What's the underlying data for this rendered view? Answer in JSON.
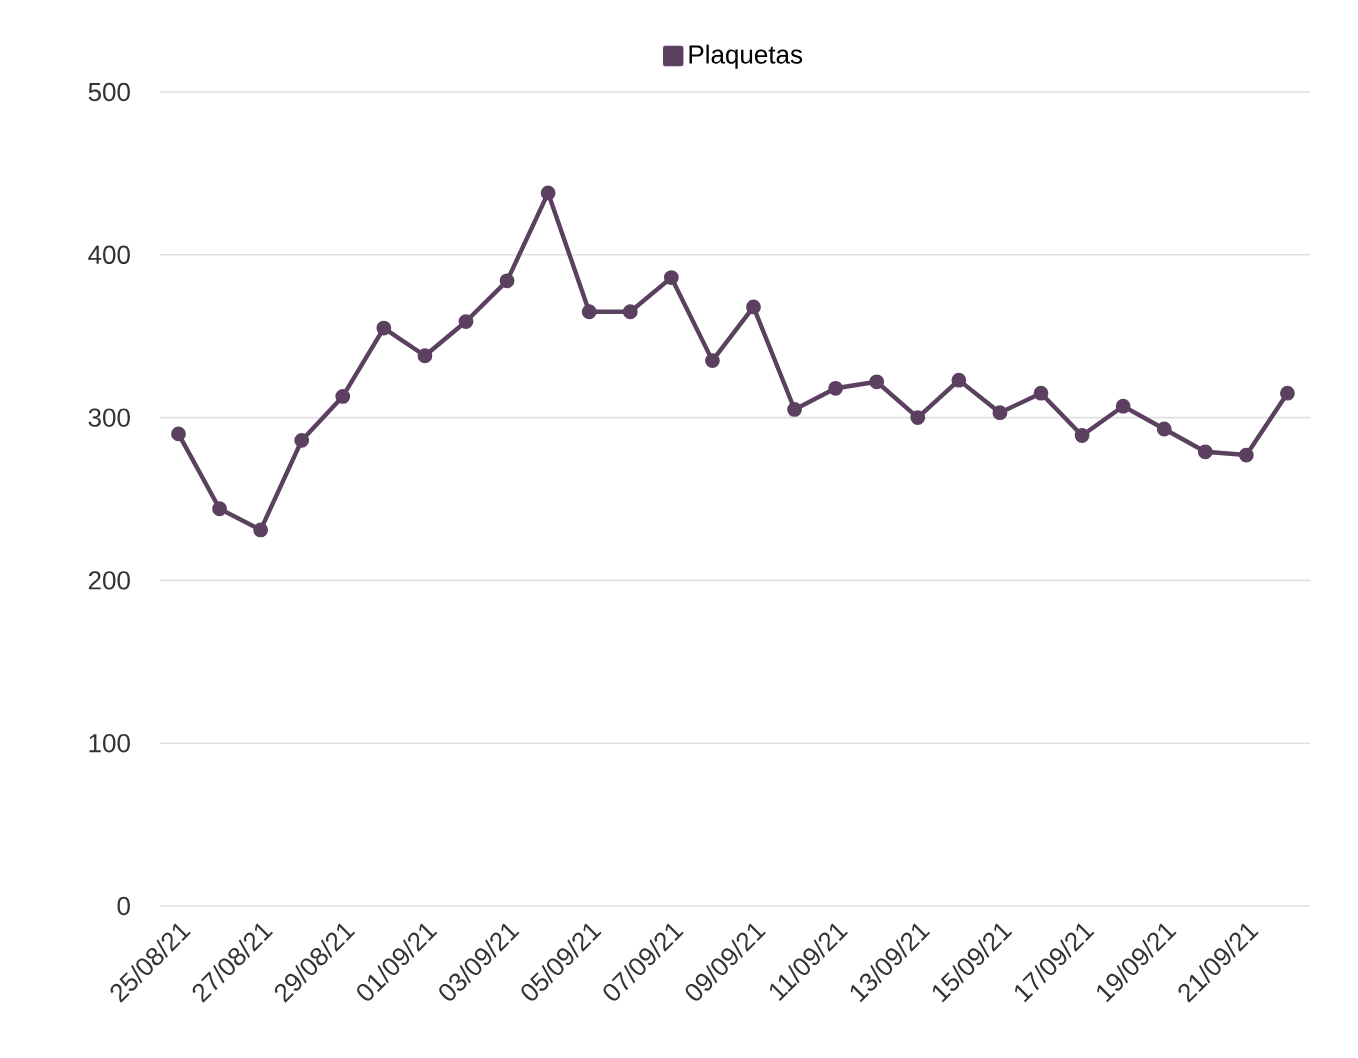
{
  "chart_data": {
    "type": "line",
    "categories": [
      "25/08/21",
      null,
      "27/08/21",
      null,
      "29/08/21",
      null,
      "01/09/21",
      null,
      "03/09/21",
      null,
      "05/09/21",
      null,
      "07/09/21",
      null,
      "09/09/21",
      null,
      "11/09/21",
      null,
      "13/09/21",
      null,
      "15/09/21",
      null,
      "17/09/21",
      null,
      "19/09/21",
      null,
      "21/09/21",
      null
    ],
    "series": [
      {
        "name": "Plaquetas",
        "color": "#5b4060",
        "values": [
          290,
          244,
          231,
          286,
          313,
          355,
          338,
          359,
          384,
          438,
          365,
          365,
          386,
          335,
          368,
          305,
          318,
          322,
          300,
          323,
          303,
          315,
          289,
          307,
          293,
          279,
          277,
          315
        ]
      }
    ],
    "ylim": [
      0,
      500
    ],
    "yticks": [
      0,
      100,
      200,
      300,
      400,
      500
    ],
    "grid": "y",
    "legend": "top",
    "marker": "circle",
    "line_style": "solid"
  }
}
